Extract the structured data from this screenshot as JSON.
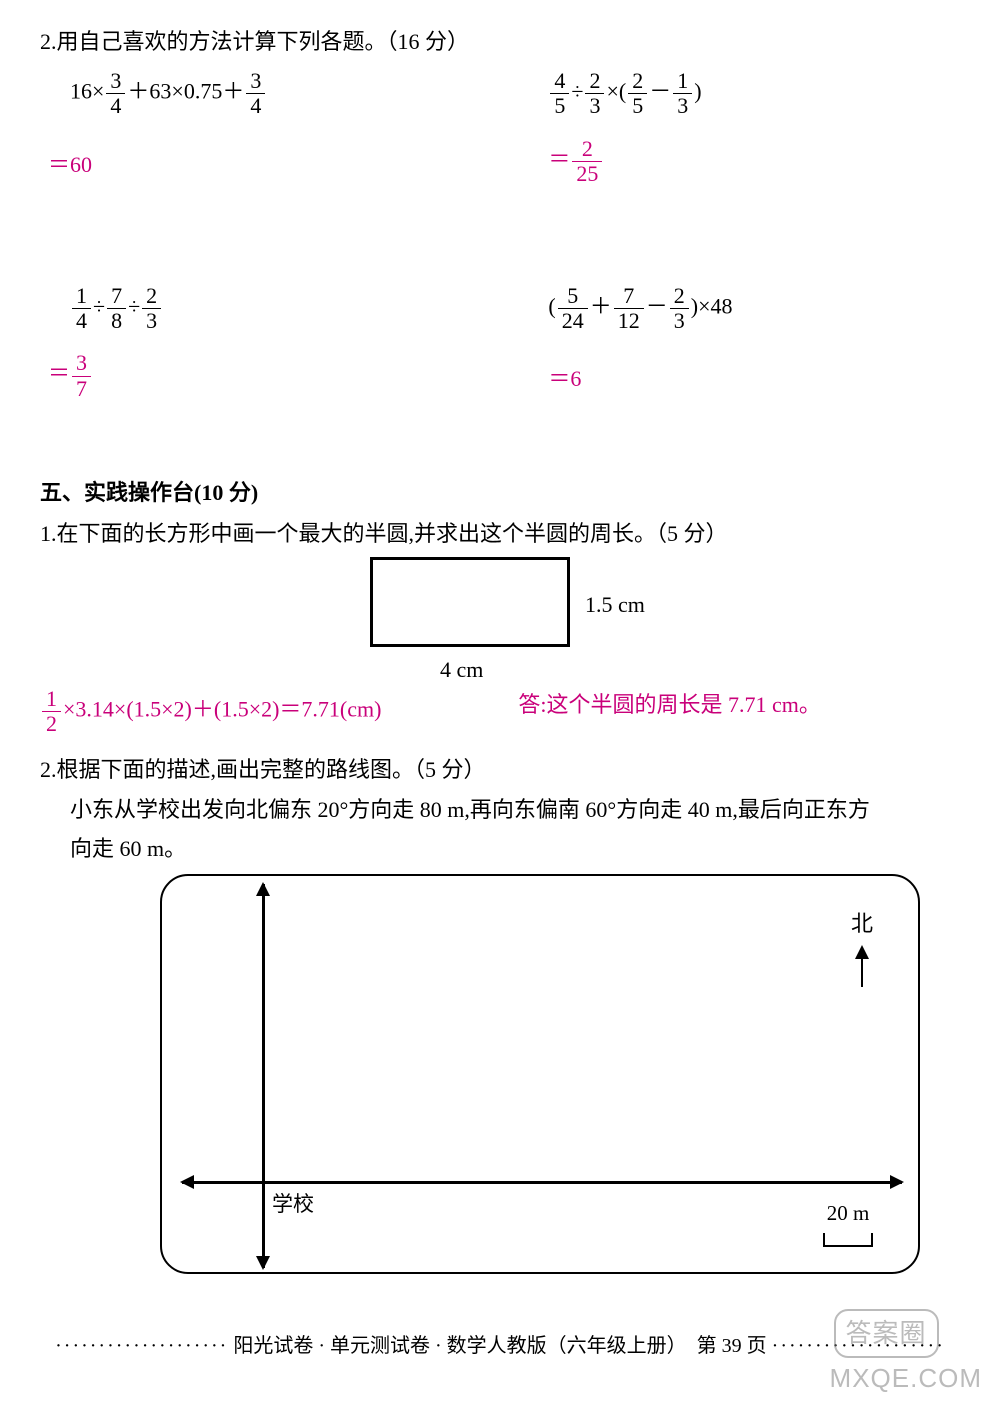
{
  "q2": {
    "title": "2.用自己喜欢的方法计算下列各题。（16 分）",
    "items": [
      {
        "expr_parts": [
          "16×",
          {
            "num": "3",
            "den": "4"
          },
          "＋63×0.75＋",
          {
            "num": "3",
            "den": "4"
          }
        ],
        "answer_parts": [
          "＝60"
        ]
      },
      {
        "expr_parts": [
          {
            "num": "4",
            "den": "5"
          },
          "÷",
          {
            "num": "2",
            "den": "3"
          },
          "×(",
          {
            "num": "2",
            "den": "5"
          },
          "－",
          {
            "num": "1",
            "den": "3"
          },
          ")"
        ],
        "answer_parts": [
          "＝",
          {
            "num": "2",
            "den": "25"
          }
        ]
      },
      {
        "expr_parts": [
          {
            "num": "1",
            "den": "4"
          },
          "÷",
          {
            "num": "7",
            "den": "8"
          },
          "÷",
          {
            "num": "2",
            "den": "3"
          }
        ],
        "answer_parts": [
          "＝",
          {
            "num": "3",
            "den": "7"
          }
        ]
      },
      {
        "expr_parts": [
          "(",
          {
            "num": "5",
            "den": "24"
          },
          "＋",
          {
            "num": "7",
            "den": "12"
          },
          "－",
          {
            "num": "2",
            "den": "3"
          },
          ")×48"
        ],
        "answer_parts": [
          "＝6"
        ]
      }
    ]
  },
  "sec5": {
    "heading": "五、实践操作台(10 分)",
    "q1": {
      "text": "1.在下面的长方形中画一个最大的半圆,并求出这个半圆的周长。（5 分）",
      "rect_h": "1.5 cm",
      "rect_w": "4 cm",
      "answer_left_parts": [
        {
          "num": "1",
          "den": "2"
        },
        "×3.14×(1.5×2)＋(1.5×2)＝7.71(cm)"
      ],
      "answer_right": "答:这个半圆的周长是 7.71 cm。"
    },
    "q2": {
      "text": "2.根据下面的描述,画出完整的路线图。（5 分）",
      "desc1": "小东从学校出发向北偏东 20°方向走 80 m,再向东偏南 60°方向走 40 m,最后向正东方",
      "desc2": "向走 60 m。",
      "label_school": "学校",
      "north": "北",
      "scale": "20 m"
    }
  },
  "footer": {
    "text": "阳光试卷 · 单元测试卷 · 数学人教版（六年级上册）　第 39 页"
  },
  "watermark": {
    "site": "MXQE.COM",
    "badge": "答案圈"
  },
  "colors": {
    "answer": "#c9007a",
    "text": "#000000",
    "bg": "#ffffff"
  }
}
